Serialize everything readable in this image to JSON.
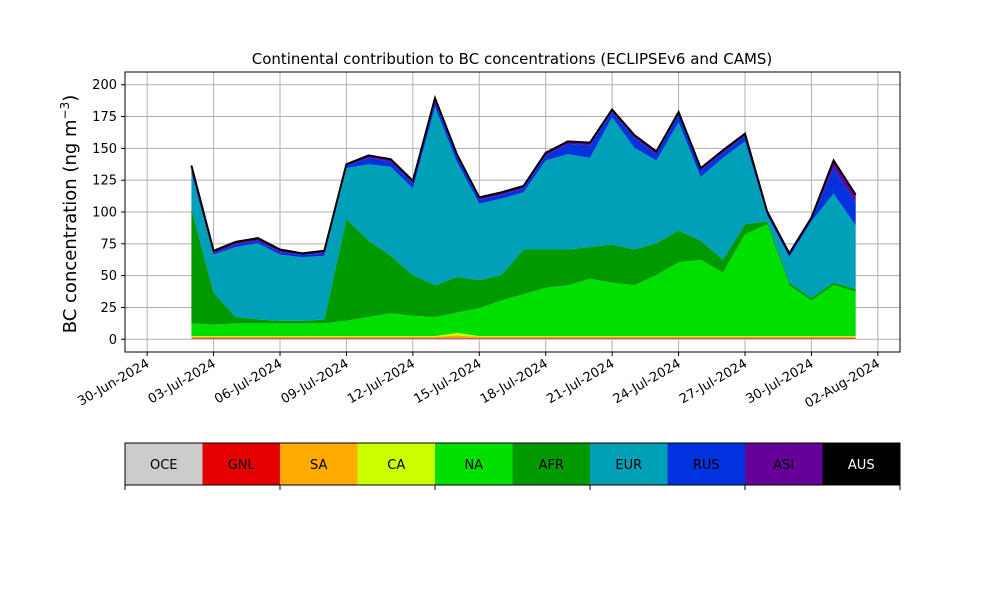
{
  "chart_data": {
    "type": "area",
    "stacked": true,
    "title": "Continental contribution to BC concentrations (ECLIPSEv6 and CAMS)",
    "ylabel": "BC concentration (ng m",
    "ylabel_sup": "−3",
    "ylabel_close": ")",
    "xlim": [
      "2024-06-29",
      "2024-08-03"
    ],
    "ylim": [
      -10,
      210
    ],
    "yticks": [
      0,
      25,
      50,
      75,
      100,
      125,
      150,
      175,
      200
    ],
    "xticks": [
      "30-Jun-2024",
      "03-Jul-2024",
      "06-Jul-2024",
      "09-Jul-2024",
      "12-Jul-2024",
      "15-Jul-2024",
      "18-Jul-2024",
      "21-Jul-2024",
      "24-Jul-2024",
      "27-Jul-2024",
      "30-Jul-2024",
      "02-Aug-2024"
    ],
    "xtick_dates": [
      "2024-06-30",
      "2024-07-03",
      "2024-07-06",
      "2024-07-09",
      "2024-07-12",
      "2024-07-15",
      "2024-07-18",
      "2024-07-21",
      "2024-07-24",
      "2024-07-27",
      "2024-07-30",
      "2024-08-02"
    ],
    "grid": true,
    "x": [
      "2024-07-02",
      "2024-07-03",
      "2024-07-04",
      "2024-07-05",
      "2024-07-06",
      "2024-07-07",
      "2024-07-08",
      "2024-07-09",
      "2024-07-10",
      "2024-07-11",
      "2024-07-12",
      "2024-07-13",
      "2024-07-14",
      "2024-07-15",
      "2024-07-16",
      "2024-07-17",
      "2024-07-18",
      "2024-07-19",
      "2024-07-20",
      "2024-07-21",
      "2024-07-22",
      "2024-07-23",
      "2024-07-24",
      "2024-07-25",
      "2024-07-26",
      "2024-07-27",
      "2024-07-28",
      "2024-07-29",
      "2024-07-30",
      "2024-07-31",
      "2024-08-01"
    ],
    "series": [
      {
        "name": "OCE",
        "color": "#cccccc",
        "values": [
          0.5,
          0.5,
          0.5,
          0.5,
          0.5,
          0.5,
          0.5,
          0.5,
          0.5,
          0.5,
          0.5,
          0.5,
          0.5,
          0.5,
          0.5,
          0.5,
          0.5,
          0.5,
          0.5,
          0.5,
          0.5,
          0.5,
          0.5,
          0.5,
          0.5,
          0.5,
          0.5,
          0.5,
          0.5,
          0.5,
          0.5
        ]
      },
      {
        "name": "GNL",
        "color": "#e60000",
        "values": [
          0.5,
          0.5,
          0.5,
          0.5,
          0.5,
          0.5,
          0.5,
          0.5,
          0.5,
          0.5,
          0.5,
          0.5,
          0.5,
          0.5,
          0.5,
          0.5,
          0.5,
          0.5,
          0.5,
          0.5,
          0.5,
          0.5,
          0.5,
          0.5,
          0.5,
          0.5,
          0.5,
          0.5,
          0.5,
          0.5,
          0.5
        ]
      },
      {
        "name": "SA",
        "color": "#ffaa00",
        "values": [
          1,
          1,
          1,
          1,
          1,
          1,
          1,
          1,
          1,
          1,
          1,
          1,
          2,
          1,
          1,
          1,
          1,
          1,
          1,
          1,
          1,
          1,
          1,
          1,
          1,
          1,
          1,
          1,
          1,
          1,
          1
        ]
      },
      {
        "name": "CA",
        "color": "#ccff00",
        "values": [
          0.5,
          0.5,
          0.5,
          0.5,
          0.5,
          0.5,
          0.5,
          0.5,
          0.5,
          0.5,
          0.5,
          0.5,
          2,
          0.5,
          0.5,
          0.5,
          0.5,
          0.5,
          0.5,
          0.5,
          0.5,
          0.5,
          0.5,
          0.5,
          0.5,
          0.5,
          0.5,
          0.5,
          0.5,
          0.5,
          0.5
        ]
      },
      {
        "name": "NA",
        "color": "#00e000",
        "values": [
          10,
          9,
          10,
          10,
          10,
          10,
          10,
          12,
          15,
          18,
          16,
          15,
          16,
          22,
          28,
          33,
          38,
          40,
          45,
          42,
          40,
          48,
          58,
          60,
          50,
          80,
          88,
          40,
          28,
          40,
          35
        ]
      },
      {
        "name": "AFR",
        "color": "#009900",
        "values": [
          90,
          25,
          5,
          3,
          2,
          2,
          3,
          80,
          60,
          45,
          32,
          25,
          28,
          22,
          20,
          35,
          30,
          28,
          25,
          30,
          28,
          25,
          25,
          15,
          10,
          8,
          2,
          2,
          2,
          2,
          2
        ]
      },
      {
        "name": "EUR",
        "color": "#00a0b8",
        "values": [
          28,
          30,
          55,
          60,
          52,
          50,
          50,
          40,
          60,
          70,
          68,
          140,
          90,
          60,
          60,
          45,
          70,
          75,
          70,
          100,
          80,
          65,
          85,
          50,
          80,
          65,
          5,
          20,
          60,
          70,
          50
        ]
      },
      {
        "name": "RUS",
        "color": "#0033dd",
        "values": [
          3,
          1,
          2,
          2,
          2,
          2,
          2,
          2,
          5,
          4,
          4,
          4,
          4,
          3,
          3,
          3,
          4,
          8,
          10,
          4,
          8,
          5,
          6,
          5,
          4,
          4,
          2,
          2,
          2,
          20,
          18
        ]
      },
      {
        "name": "ASI",
        "color": "#660099",
        "values": [
          3,
          2,
          2,
          2,
          2,
          1,
          2,
          1,
          2,
          2,
          2,
          3,
          2,
          2,
          2,
          2,
          2,
          2,
          2,
          2,
          2,
          2,
          2,
          2,
          2,
          2,
          1,
          1,
          1,
          6,
          6
        ]
      },
      {
        "name": "AUS",
        "color": "#000000",
        "values": [
          0,
          0,
          0,
          0,
          0,
          0,
          0,
          0,
          0,
          0,
          0,
          0,
          0,
          0,
          0,
          0,
          0,
          0,
          0,
          0,
          0,
          0,
          0,
          0,
          0,
          0,
          0,
          0,
          0,
          0,
          0
        ]
      }
    ]
  },
  "colorbar": {
    "labels": [
      "OCE",
      "GNL",
      "SA",
      "CA",
      "NA",
      "AFR",
      "EUR",
      "RUS",
      "ASI",
      "AUS"
    ],
    "colors": [
      "#cccccc",
      "#e60000",
      "#ffaa00",
      "#ccff00",
      "#00e000",
      "#009900",
      "#00a0b8",
      "#0033dd",
      "#660099",
      "#000000"
    ]
  }
}
